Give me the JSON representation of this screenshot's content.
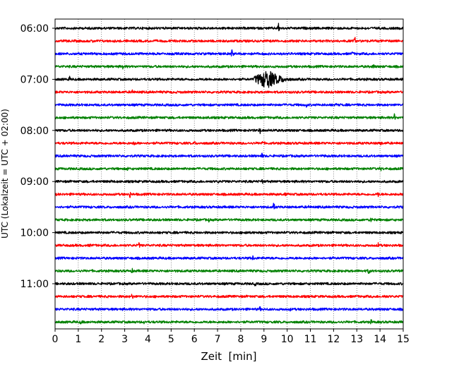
{
  "chart_data": {
    "type": "line",
    "title": "",
    "xlabel": "Zeit  [min]",
    "ylabel": "UTC (Lokalzeit = UTC + 02:00)",
    "xlim": [
      0,
      15
    ],
    "x_ticks": [
      0,
      1,
      2,
      3,
      4,
      5,
      6,
      7,
      8,
      9,
      10,
      11,
      12,
      13,
      14,
      15
    ],
    "x_tick_labels": [
      "0",
      "1",
      "2",
      "3",
      "4",
      "5",
      "6",
      "7",
      "8",
      "9",
      "10",
      "11",
      "12",
      "13",
      "14",
      "15"
    ],
    "y_tick_labels": [
      "06:00",
      "07:00",
      "08:00",
      "09:00",
      "10:00",
      "11:00"
    ],
    "y_tick_trace_index": [
      0,
      4,
      8,
      12,
      16,
      20
    ],
    "grid": "vertical dotted",
    "color_cycle": [
      "#000000",
      "#ff0000",
      "#0000ff",
      "#008000"
    ],
    "trace_interval_min": 15,
    "traces": [
      {
        "start": "06:00",
        "events": [
          {
            "t": 9.6,
            "amp": 0.9
          },
          {
            "t": 10.7,
            "amp": 0.3
          },
          {
            "t": 7.3,
            "amp": 0.25
          }
        ]
      },
      {
        "start": "06:15",
        "events": [
          {
            "t": 1.6,
            "amp": 0.35
          },
          {
            "t": 12.9,
            "amp": 0.7
          },
          {
            "t": 14.5,
            "amp": 0.3
          }
        ]
      },
      {
        "start": "06:30",
        "events": [
          {
            "t": 5.0,
            "amp": 0.35
          },
          {
            "t": 7.6,
            "amp": 0.85
          },
          {
            "t": 10.1,
            "amp": 0.3
          },
          {
            "t": 12.8,
            "amp": 0.5
          }
        ]
      },
      {
        "start": "06:45",
        "events": [
          {
            "t": 2.9,
            "amp": 0.6
          },
          {
            "t": 13.7,
            "amp": 0.6
          }
        ]
      },
      {
        "start": "07:00",
        "events": [
          {
            "t": 0.6,
            "amp": 0.55
          },
          {
            "t": 8.6,
            "amp": 1.6,
            "dur": 1.6
          }
        ]
      },
      {
        "start": "07:15",
        "events": [
          {
            "t": 3.3,
            "amp": 0.6
          }
        ]
      },
      {
        "start": "07:30",
        "events": [
          {
            "t": 10.8,
            "amp": 0.5
          },
          {
            "t": 12.1,
            "amp": 0.4
          }
        ]
      },
      {
        "start": "07:45",
        "events": [
          {
            "t": 6.6,
            "amp": 0.4
          },
          {
            "t": 14.6,
            "amp": 0.7
          }
        ]
      },
      {
        "start": "08:00",
        "events": [
          {
            "t": 8.8,
            "amp": 0.7
          },
          {
            "t": 9.4,
            "amp": 0.4
          }
        ]
      },
      {
        "start": "08:15",
        "events": [
          {
            "t": 3.4,
            "amp": 0.65
          },
          {
            "t": 6.0,
            "amp": 0.4
          },
          {
            "t": 8.9,
            "amp": 0.5
          },
          {
            "t": 14.0,
            "amp": 0.55
          }
        ]
      },
      {
        "start": "08:30",
        "events": [
          {
            "t": 8.9,
            "amp": 0.55
          },
          {
            "t": 11.6,
            "amp": 0.3
          }
        ]
      },
      {
        "start": "08:45",
        "events": [
          {
            "t": 3.1,
            "amp": 0.45
          },
          {
            "t": 14.0,
            "amp": 0.55
          }
        ]
      },
      {
        "start": "09:00",
        "events": [
          {
            "t": 2.4,
            "amp": 0.35
          },
          {
            "t": 7.0,
            "amp": 0.35
          },
          {
            "t": 8.9,
            "amp": 0.5
          }
        ]
      },
      {
        "start": "09:15",
        "events": [
          {
            "t": 3.2,
            "amp": 0.65
          },
          {
            "t": 9.9,
            "amp": 0.4
          },
          {
            "t": 13.9,
            "amp": 0.55
          }
        ]
      },
      {
        "start": "09:30",
        "events": [
          {
            "t": 9.4,
            "amp": 0.8
          },
          {
            "t": 10.9,
            "amp": 0.4
          }
        ]
      },
      {
        "start": "09:45",
        "events": [
          {
            "t": 6.6,
            "amp": 0.4
          },
          {
            "t": 13.6,
            "amp": 0.75
          }
        ]
      },
      {
        "start": "10:00",
        "events": [
          {
            "t": 8.2,
            "amp": 0.55
          }
        ]
      },
      {
        "start": "10:15",
        "events": [
          {
            "t": 1.5,
            "amp": 0.35
          },
          {
            "t": 3.6,
            "amp": 0.55
          },
          {
            "t": 13.9,
            "amp": 0.45
          }
        ]
      },
      {
        "start": "10:30",
        "events": [
          {
            "t": 8.5,
            "amp": 0.5
          },
          {
            "t": 9.1,
            "amp": 0.3
          }
        ]
      },
      {
        "start": "10:45",
        "events": [
          {
            "t": 3.3,
            "amp": 0.45
          },
          {
            "t": 13.5,
            "amp": 0.7
          }
        ]
      },
      {
        "start": "11:00",
        "events": [
          {
            "t": 8.6,
            "amp": 0.5
          },
          {
            "t": 9.9,
            "amp": 0.3
          }
        ]
      },
      {
        "start": "11:15",
        "events": [
          {
            "t": 3.3,
            "amp": 0.6
          },
          {
            "t": 14.2,
            "amp": 0.55
          }
        ]
      },
      {
        "start": "11:30",
        "events": [
          {
            "t": 8.8,
            "amp": 0.55
          },
          {
            "t": 10.1,
            "amp": 0.4
          }
        ]
      },
      {
        "start": "11:45",
        "events": [
          {
            "t": 1.1,
            "amp": 0.6
          },
          {
            "t": 3.8,
            "amp": 0.4
          },
          {
            "t": 13.6,
            "amp": 0.5
          }
        ]
      }
    ]
  }
}
